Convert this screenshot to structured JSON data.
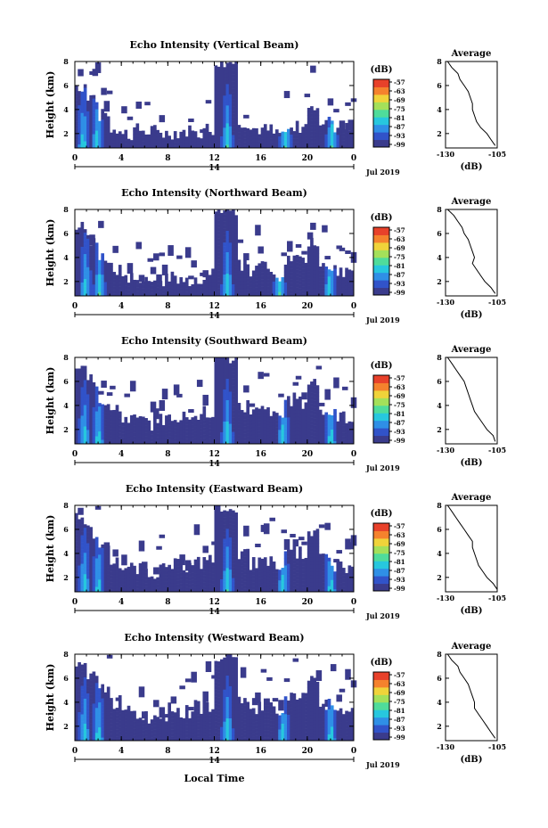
{
  "figure": {
    "x_axis_label": "Local Time",
    "date_label": "Jul 2019",
    "day_marker": "14",
    "colorbar_unit": "(dB)",
    "colorbar_ticks": [
      "-57",
      "-63",
      "-69",
      "-75",
      "-81",
      "-87",
      "-93",
      "-99"
    ],
    "avg_title": "Average",
    "avg_xlabel": "(dB)",
    "avg_xticks": [
      "-130",
      "-105"
    ],
    "y_label": "Height (km)",
    "colormap": [
      "#3a3b8c",
      "#3153c9",
      "#2f8fe6",
      "#27c7de",
      "#4fdc9b",
      "#a4e05a",
      "#f0d33a",
      "#f5822d",
      "#e8412a"
    ]
  },
  "chart_data": [
    {
      "type": "heatmap",
      "title": "Echo Intensity (Vertical Beam)",
      "xlabel": "",
      "ylabel": "Height (km)",
      "x_ticks": [
        "0",
        "4",
        "8",
        "12",
        "16",
        "20",
        "0"
      ],
      "y_ticks": [
        "2",
        "4",
        "6",
        "8"
      ],
      "xlim": [
        0,
        24
      ],
      "ylim": [
        0.8,
        8
      ],
      "colorbar": {
        "label": "(dB)",
        "range": [
          -99,
          -57
        ]
      },
      "profile_top_km": [
        6.0,
        5.0,
        3.5,
        2.5,
        2.0,
        2.3,
        2.2,
        2.0,
        2.1,
        2.2,
        2.0,
        2.4,
        8.0,
        8.0,
        3.0,
        2.4,
        2.3,
        2.0,
        2.2,
        2.6,
        4.5,
        3.0,
        2.6,
        2.4
      ],
      "bright_columns_hours": [
        0.6,
        1.8,
        13.0,
        18.0,
        22.0
      ],
      "average_profile": {
        "title": "Average",
        "xlabel": "(dB)",
        "xlim": [
          -130,
          -105
        ],
        "ylim": [
          0.8,
          8
        ],
        "height_km": [
          8,
          7.5,
          7,
          6.5,
          6,
          5.5,
          5,
          4.5,
          4,
          3.5,
          3,
          2.5,
          2,
          1.5,
          1
        ],
        "db": [
          -129,
          -127,
          -124,
          -123,
          -121,
          -119,
          -118,
          -117,
          -117,
          -116,
          -115,
          -113,
          -110,
          -108,
          -106
        ]
      }
    },
    {
      "type": "heatmap",
      "title": "Echo Intensity (Northward Beam)",
      "xlabel": "",
      "ylabel": "Height (km)",
      "x_ticks": [
        "0",
        "4",
        "8",
        "12",
        "16",
        "20",
        "0"
      ],
      "y_ticks": [
        "2",
        "4",
        "6",
        "8"
      ],
      "xlim": [
        0,
        24
      ],
      "ylim": [
        0.8,
        8
      ],
      "colorbar": {
        "label": "(dB)",
        "range": [
          -99,
          -57
        ]
      },
      "profile_top_km": [
        6.5,
        5.5,
        4.0,
        3.0,
        2.4,
        2.2,
        2.0,
        2.1,
        2.4,
        2.2,
        2.3,
        2.6,
        8.0,
        8.0,
        3.5,
        3.0,
        3.2,
        2.5,
        4.0,
        3.8,
        5.5,
        3.0,
        2.8,
        2.6
      ],
      "bright_columns_hours": [
        0.8,
        2.0,
        13.0,
        17.5,
        21.8
      ],
      "average_profile": {
        "title": "Average",
        "xlabel": "(dB)",
        "xlim": [
          -130,
          -105
        ],
        "ylim": [
          0.8,
          8
        ],
        "height_km": [
          8,
          7.5,
          7,
          6.5,
          6,
          5.5,
          5,
          4.5,
          4,
          3.5,
          3,
          2.5,
          2,
          1.5,
          1
        ],
        "db": [
          -129,
          -126,
          -124,
          -122,
          -121,
          -119,
          -118,
          -117,
          -116,
          -117,
          -115,
          -113,
          -111,
          -108,
          -106
        ]
      }
    },
    {
      "type": "heatmap",
      "title": "Echo Intensity (Southward Beam)",
      "xlabel": "",
      "ylabel": "Height (km)",
      "x_ticks": [
        "0",
        "4",
        "8",
        "12",
        "16",
        "20",
        "0"
      ],
      "y_ticks": [
        "2",
        "4",
        "6",
        "8"
      ],
      "xlim": [
        0,
        24
      ],
      "ylim": [
        0.8,
        8
      ],
      "colorbar": {
        "label": "(dB)",
        "range": [
          -99,
          -57
        ]
      },
      "profile_top_km": [
        7.0,
        6.0,
        4.5,
        3.5,
        3.0,
        2.8,
        2.5,
        2.8,
        3.2,
        3.0,
        3.4,
        3.5,
        8.0,
        8.0,
        4.0,
        3.5,
        3.6,
        3.0,
        4.5,
        4.2,
        6.0,
        3.5,
        3.2,
        3.0
      ],
      "bright_columns_hours": [
        0.7,
        1.9,
        13.0,
        17.8,
        21.9
      ],
      "average_profile": {
        "title": "Average",
        "xlabel": "(dB)",
        "xlim": [
          -130,
          -105
        ],
        "ylim": [
          0.8,
          8
        ],
        "height_km": [
          8,
          7.5,
          7,
          6.5,
          6,
          5.5,
          5,
          4.5,
          4,
          3.5,
          3,
          2.5,
          2,
          1.5,
          1
        ],
        "db": [
          -129,
          -127,
          -125,
          -123,
          -121,
          -120,
          -119,
          -118,
          -117,
          -116,
          -114,
          -112,
          -110,
          -107,
          -106
        ]
      }
    },
    {
      "type": "heatmap",
      "title": "Echo Intensity (Eastward Beam)",
      "xlabel": "",
      "ylabel": "Height (km)",
      "x_ticks": [
        "0",
        "4",
        "8",
        "12",
        "16",
        "20",
        "0"
      ],
      "y_ticks": [
        "2",
        "4",
        "6",
        "8"
      ],
      "xlim": [
        0,
        24
      ],
      "ylim": [
        0.8,
        8
      ],
      "colorbar": {
        "label": "(dB)",
        "range": [
          -99,
          -57
        ]
      },
      "profile_top_km": [
        6.8,
        5.8,
        4.2,
        3.2,
        2.8,
        2.6,
        2.4,
        2.6,
        3.0,
        2.9,
        3.2,
        3.4,
        8.0,
        8.0,
        3.8,
        3.2,
        3.4,
        2.8,
        4.2,
        4.0,
        5.8,
        3.4,
        3.0,
        2.8
      ],
      "bright_columns_hours": [
        0.7,
        1.9,
        13.0,
        17.8,
        21.9
      ],
      "average_profile": {
        "title": "Average",
        "xlabel": "(dB)",
        "xlim": [
          -130,
          -105
        ],
        "ylim": [
          0.8,
          8
        ],
        "height_km": [
          8,
          7.5,
          7,
          6.5,
          6,
          5.5,
          5,
          4.5,
          4,
          3.5,
          3,
          2.5,
          2,
          1.5,
          1
        ],
        "db": [
          -129,
          -127,
          -125,
          -123,
          -121,
          -119,
          -117,
          -117,
          -116,
          -115,
          -114,
          -112,
          -110,
          -107,
          -105
        ]
      }
    },
    {
      "type": "heatmap",
      "title": "Echo Intensity (Westward Beam)",
      "xlabel": "Local Time",
      "ylabel": "Height (km)",
      "x_ticks": [
        "0",
        "4",
        "8",
        "12",
        "16",
        "20",
        "0"
      ],
      "y_ticks": [
        "2",
        "4",
        "6",
        "8"
      ],
      "xlim": [
        0,
        24
      ],
      "ylim": [
        0.8,
        8
      ],
      "colorbar": {
        "label": "(dB)",
        "range": [
          -99,
          -57
        ]
      },
      "profile_top_km": [
        7.0,
        6.5,
        5.0,
        4.0,
        3.2,
        3.0,
        2.8,
        3.0,
        3.4,
        3.2,
        3.6,
        3.8,
        8.0,
        8.0,
        4.2,
        3.6,
        3.8,
        3.2,
        4.6,
        4.4,
        6.2,
        3.8,
        3.4,
        3.2
      ],
      "bright_columns_hours": [
        0.7,
        1.9,
        13.0,
        17.8,
        21.9
      ],
      "average_profile": {
        "title": "Average",
        "xlabel": "(dB)",
        "xlim": [
          -130,
          -105
        ],
        "ylim": [
          0.8,
          8
        ],
        "height_km": [
          8,
          7.5,
          7,
          6.5,
          6,
          5.5,
          5,
          4.5,
          4,
          3.5,
          3,
          2.5,
          2,
          1.5,
          1
        ],
        "db": [
          -129,
          -127,
          -124,
          -123,
          -121,
          -119,
          -118,
          -117,
          -116,
          -116,
          -114,
          -112,
          -110,
          -108,
          -106
        ]
      }
    }
  ]
}
